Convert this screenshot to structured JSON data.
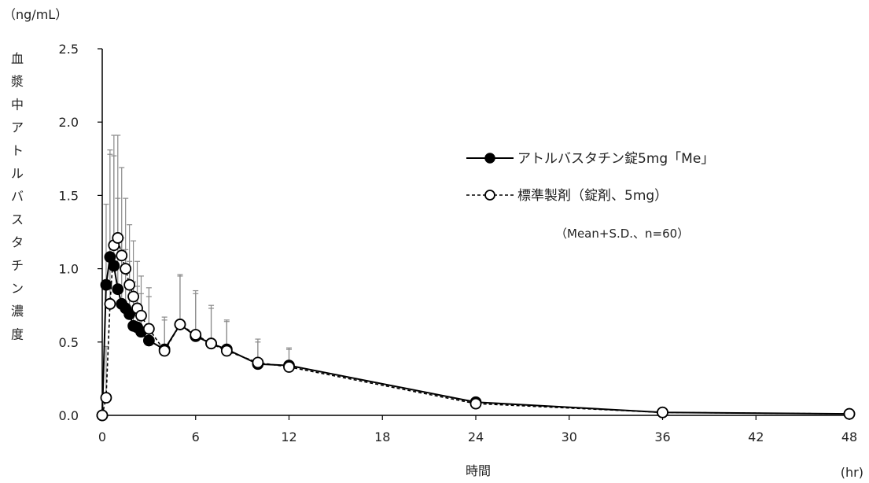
{
  "chart_data": {
    "type": "line",
    "unit_label": "（ng/mL）",
    "ylabel": "血漿中アトルバスタチン濃度",
    "xlabel": "時間",
    "xunit": "(hr)",
    "xlim": [
      0,
      48
    ],
    "ylim": [
      0,
      2.5
    ],
    "xticks": [
      "0",
      "6",
      "12",
      "18",
      "24",
      "30",
      "36",
      "42",
      "48"
    ],
    "yticks": [
      "0.0",
      "0.5",
      "1.0",
      "1.5",
      "2.0",
      "2.5"
    ],
    "note": "（Mean+S.D.、n=60）",
    "legend_position": "upper-right",
    "series": [
      {
        "name": "アトルバスタチン錠5mg「Me」",
        "marker": "filled-circle",
        "line": "solid",
        "x": [
          0,
          0.25,
          0.5,
          0.75,
          1,
          1.25,
          1.5,
          1.75,
          2,
          2.25,
          2.5,
          3,
          4,
          5,
          6,
          7,
          8,
          10,
          12,
          24,
          36,
          48
        ],
        "y": [
          0,
          0.89,
          1.08,
          1.02,
          0.86,
          0.76,
          0.73,
          0.69,
          0.61,
          0.6,
          0.57,
          0.51,
          0.45,
          0.62,
          0.54,
          0.49,
          0.45,
          0.35,
          0.34,
          0.09,
          0.02,
          0.01
        ],
        "sd": [
          0,
          0.55,
          0.7,
          0.75,
          0.62,
          0.45,
          0.4,
          0.36,
          0.3,
          0.28,
          0.26,
          0.3,
          0.2,
          0.33,
          0.29,
          0.24,
          0.19,
          0.15,
          0.11,
          0.03,
          0.01,
          0.005
        ]
      },
      {
        "name": "標準製剤（錠剤、5mg）",
        "marker": "open-circle",
        "line": "dashed",
        "x": [
          0,
          0.25,
          0.5,
          0.75,
          1,
          1.25,
          1.5,
          1.75,
          2,
          2.25,
          2.5,
          3,
          4,
          5,
          6,
          7,
          8,
          10,
          12,
          24,
          36,
          48
        ],
        "y": [
          0,
          0.12,
          0.76,
          1.16,
          1.21,
          1.09,
          1.0,
          0.89,
          0.81,
          0.73,
          0.68,
          0.59,
          0.44,
          0.62,
          0.55,
          0.49,
          0.44,
          0.36,
          0.33,
          0.08,
          0.02,
          0.01
        ],
        "sd": [
          0,
          0.35,
          1.05,
          0.75,
          0.7,
          0.6,
          0.48,
          0.41,
          0.38,
          0.32,
          0.27,
          0.28,
          0.23,
          0.34,
          0.3,
          0.26,
          0.21,
          0.16,
          0.13,
          0.03,
          0.01,
          0.005
        ]
      }
    ]
  }
}
